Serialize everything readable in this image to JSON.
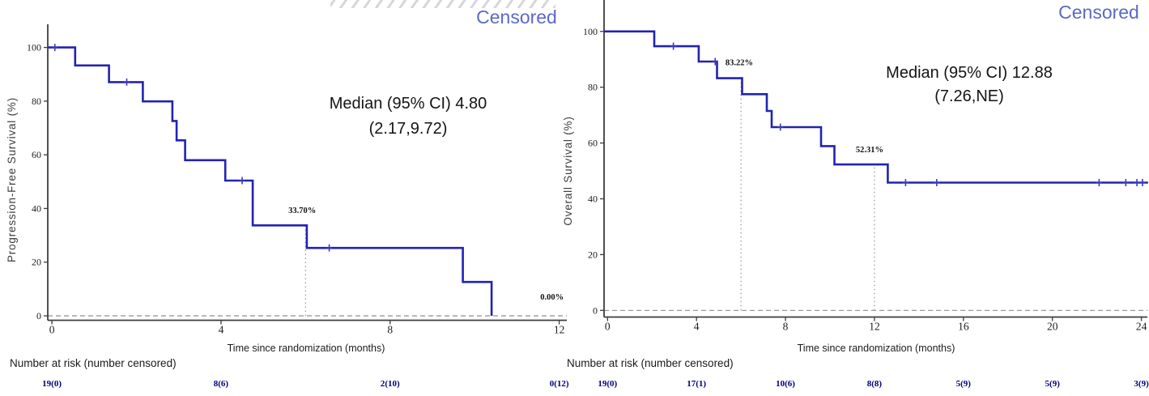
{
  "colors": {
    "curve": "#2222b2",
    "censor_mark": "#3a3ac0",
    "legend_text": "#5c69c6",
    "risk_numbers": "#00007d",
    "axis": "#3d3d3d",
    "reference_lines": "#8f8f8f"
  },
  "chart_data": [
    {
      "type": "line",
      "name": "progression-free-survival-km",
      "y_axis_title": "Progression-Free Survival (%)",
      "x_axis_title": "Time since randomization (months)",
      "legend": "Censored",
      "median_text": "Median (95% CI) 4.80",
      "median_ci_text": "(2.17,9.72)",
      "risk_table_header": "Number at risk (number censored)",
      "xlim": [
        0,
        12
      ],
      "ylim": [
        0,
        100
      ],
      "x_ticks": [
        0,
        4,
        8,
        12
      ],
      "y_ticks": [
        0,
        20,
        40,
        60,
        80,
        100
      ],
      "km_steps": [
        [
          0,
          100
        ],
        [
          0.55,
          93.3
        ],
        [
          1.35,
          87.1
        ],
        [
          2.15,
          79.9
        ],
        [
          2.85,
          72.6
        ],
        [
          2.95,
          65.4
        ],
        [
          3.15,
          58.0
        ],
        [
          4.1,
          50.4
        ],
        [
          4.75,
          33.7
        ],
        [
          6.03,
          25.3
        ],
        [
          9.72,
          12.6
        ],
        [
          10.4,
          0
        ]
      ],
      "censor_marks": [
        [
          0.07,
          100
        ],
        [
          1.77,
          87.1
        ],
        [
          4.5,
          50.4
        ],
        [
          6.56,
          25.3
        ]
      ],
      "landmarks": [
        {
          "x": 6,
          "survival_pct": 33.7,
          "label": "33.70%",
          "dotted_line": true,
          "label_at": [
            5.92,
            38.3
          ]
        },
        {
          "x": 12,
          "survival_pct": 0,
          "label": "0.00%",
          "dotted_line": false,
          "label_at": [
            11.83,
            6.0
          ]
        }
      ],
      "number_at_risk": [
        "19(0)",
        "8(6)",
        "2(10)",
        "0(12)"
      ]
    },
    {
      "type": "line",
      "name": "overall-survival-km",
      "y_axis_title": "Overall Survival (%)",
      "x_axis_title": "Time since randomization (months)",
      "legend": "Censored",
      "median_text": "Median (95% CI) 12.88",
      "median_ci_text": "(7.26,NE)",
      "risk_table_header": "Number at risk (number censored)",
      "xlim": [
        0,
        24
      ],
      "ylim": [
        0,
        100
      ],
      "x_ticks": [
        0,
        4,
        8,
        12,
        16,
        20,
        24
      ],
      "y_ticks": [
        0,
        20,
        40,
        60,
        80,
        100
      ],
      "km_steps": [
        [
          0,
          100
        ],
        [
          2.1,
          94.7
        ],
        [
          4.1,
          89.2
        ],
        [
          4.92,
          83.22
        ],
        [
          6.05,
          77.5
        ],
        [
          7.16,
          71.5
        ],
        [
          7.38,
          65.7
        ],
        [
          9.6,
          58.9
        ],
        [
          10.2,
          52.31
        ],
        [
          12.6,
          45.8
        ],
        [
          24.3,
          45.8
        ]
      ],
      "censor_marks": [
        [
          2.96,
          94.7
        ],
        [
          4.84,
          89.2
        ],
        [
          7.77,
          65.7
        ],
        [
          13.4,
          45.8
        ],
        [
          14.8,
          45.8
        ],
        [
          22.1,
          45.8
        ],
        [
          23.3,
          45.8
        ],
        [
          23.8,
          45.8
        ],
        [
          24.05,
          45.8
        ]
      ],
      "landmarks": [
        {
          "x": 6,
          "survival_pct": 83.22,
          "label": "83.22%",
          "dotted_line": true,
          "label_at": [
            5.92,
            87.9
          ]
        },
        {
          "x": 12,
          "survival_pct": 52.31,
          "label": "52.31%",
          "dotted_line": true,
          "label_at": [
            11.78,
            56.7
          ]
        }
      ],
      "number_at_risk": [
        "19(0)",
        "17(1)",
        "10(6)",
        "8(8)",
        "5(9)",
        "5(9)",
        "3(9)"
      ]
    }
  ]
}
